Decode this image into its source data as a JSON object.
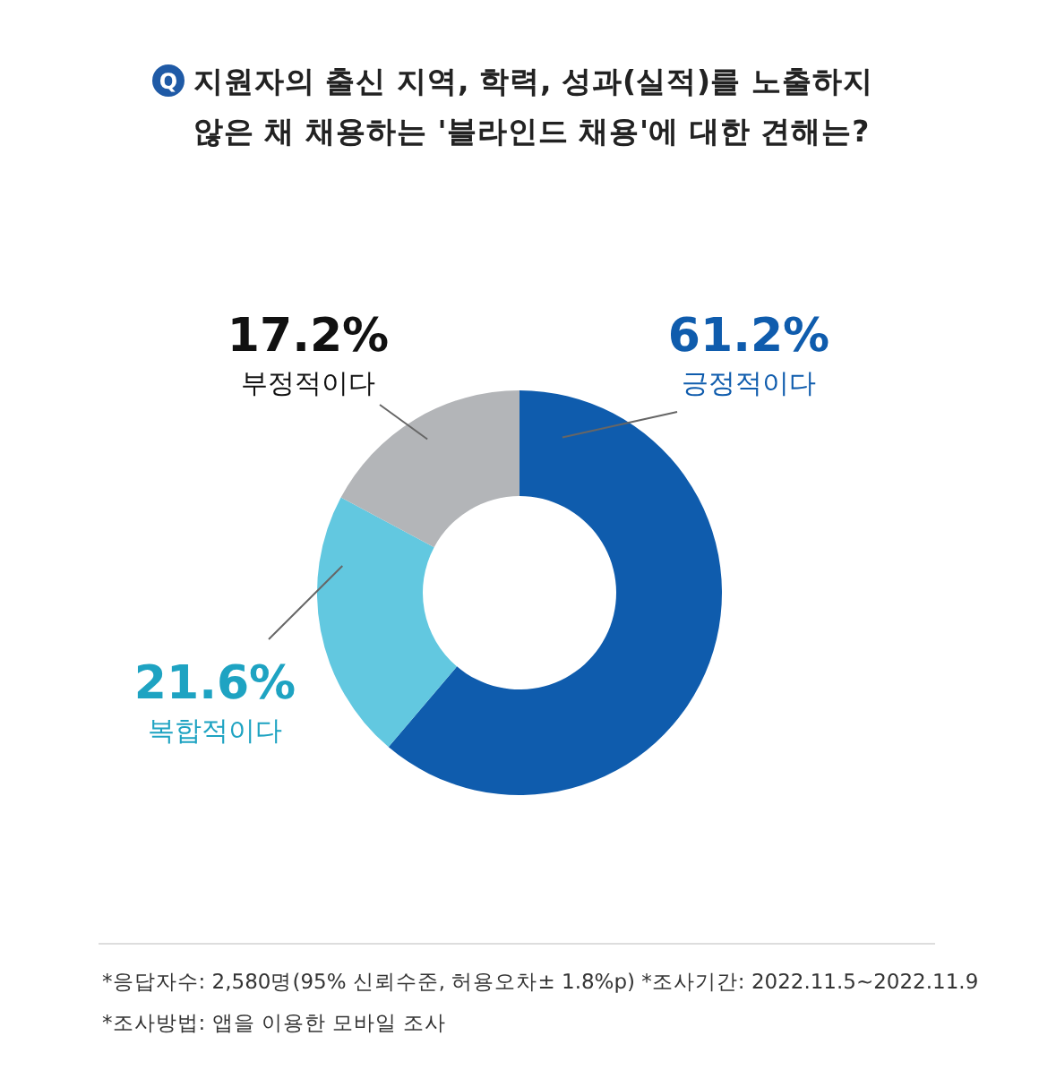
{
  "chart_data": {
    "type": "donut",
    "title": "지원자의 출신 지역, 학력, 성과(실적)를 노출하지\n않은 채 채용하는 '블라인드 채용'에 대한 견해는?",
    "categories": [
      "긍정적이다",
      "복합적이다",
      "부정적이다"
    ],
    "values": [
      61.2,
      21.6,
      17.2
    ],
    "value_labels": [
      "61.2%",
      "21.6%",
      "17.2%"
    ],
    "colors": [
      "#0f5cad",
      "#62c8e0",
      "#b3b5b8"
    ],
    "annotations": [
      "Q",
      "*응답자수: 2,580명(95% 신뢰수준, 허용오차± 1.8%p)  *조사기간: 2022.11.5~2022.11.9",
      "*조사방법: 앱을 이용한 모바일 조사"
    ]
  }
}
